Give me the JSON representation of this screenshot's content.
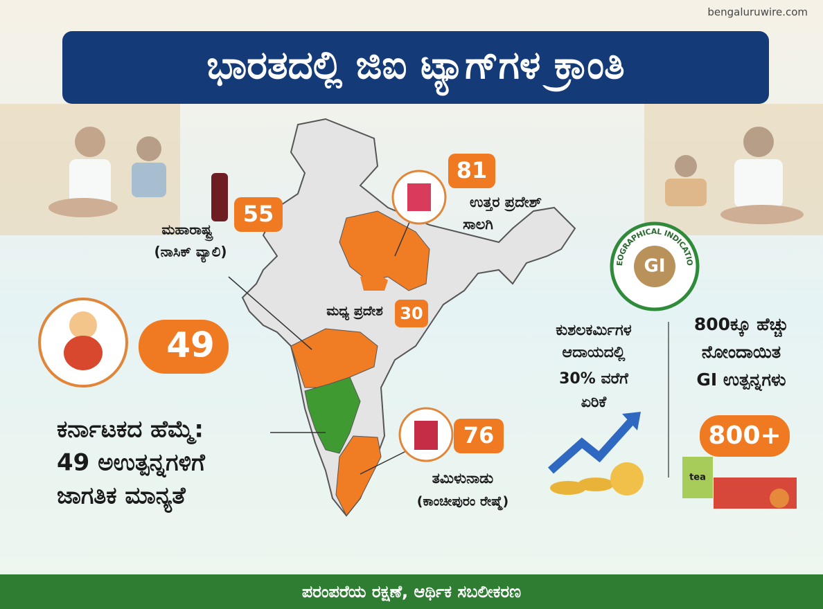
{
  "source": "bengaluruwire.com",
  "title": "ಭಾರತದಲ್ಲಿ ಜಿಐ ಟ್ಯಾಗ್‌ಗಳ ಕ್ರಾಂತಿ",
  "states": [
    {
      "count": "55",
      "name": "ಮಹಾರಾಷ್ಟ್ರ",
      "product": "(ನಾಸಿಕ್ ವ್ಯಾಲಿ)"
    },
    {
      "count": "81",
      "name": "ಉತ್ತರ ಪ್ರದೇಶ್",
      "product": "ಸಾಲಗಿ"
    },
    {
      "count": "30",
      "name": "ಮಧ್ಯ ಪ್ರದೇಶ"
    },
    {
      "count": "76",
      "name": "ತಮಿಳುನಾಡು",
      "product": "(ಕಾಂಚೀಪುರಂ ರೇಷ್ಮೆ)"
    }
  ],
  "karnataka": {
    "count": "49",
    "lines": [
      "ಕರ್ನಾಟಕದ ಹೆಮ್ಮೆ:",
      "49 ಅಉತ್ಪನ್ನಗಳಿಗೆ",
      "ಜಾಗತಿಕ ಮಾನ್ಯತೆ"
    ]
  },
  "income": {
    "lines": [
      "ಕುಶಲಕರ್ಮಿಗಳ",
      "ಆದಾಯದಲ್ಲಿ",
      "30% ವರೆಗೆ",
      "ಏರಿಕೆ"
    ]
  },
  "seal": {
    "ring": "GEOGRAPHICAL INDICATION",
    "center": "GI"
  },
  "registered": {
    "lines": [
      "800ಕ್ಕೂ ಹೆಚ್ಚು",
      "ನೋಂದಾಯಿತ",
      "GI ಉತ್ಪನ್ನಗಳು"
    ],
    "badge": "800+",
    "tea": "tea"
  },
  "footer": "ಪರಂಪರೆಯ ರಕ್ಷಣೆ, ಆರ್ಥಿಕ ಸಬಲೀಕರಣ"
}
